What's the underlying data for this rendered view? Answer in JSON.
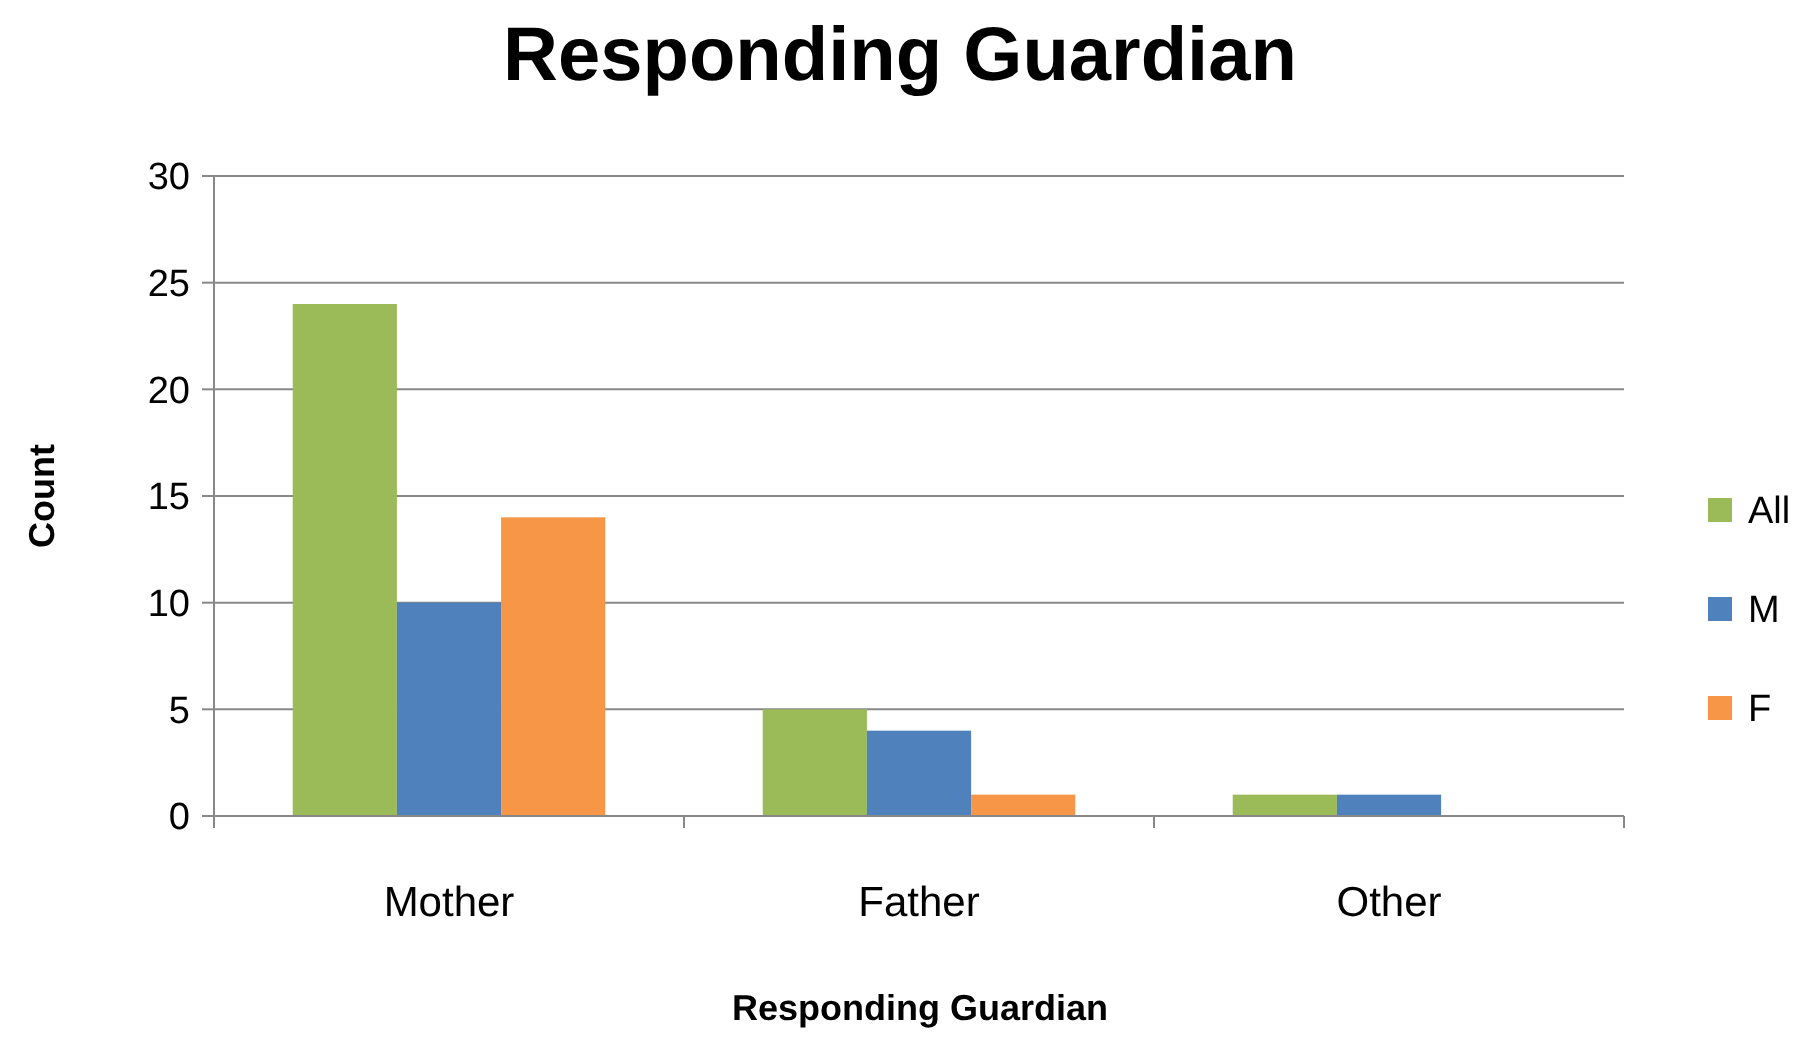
{
  "chart_data": {
    "type": "bar",
    "title": "Responding Guardian",
    "xlabel": "Responding Guardian",
    "ylabel": "Count",
    "categories": [
      "Mother",
      "Father",
      "Other"
    ],
    "series": [
      {
        "name": "All",
        "color": "#9bbb59",
        "values": [
          24,
          5,
          1
        ]
      },
      {
        "name": "M",
        "color": "#4f81bd",
        "values": [
          10,
          4,
          1
        ]
      },
      {
        "name": "F",
        "color": "#f79646",
        "values": [
          14,
          1,
          0
        ]
      }
    ],
    "ylim": [
      0,
      30
    ],
    "yticks": [
      0,
      5,
      10,
      15,
      20,
      25,
      30
    ],
    "grid": "y",
    "legend": "right"
  }
}
